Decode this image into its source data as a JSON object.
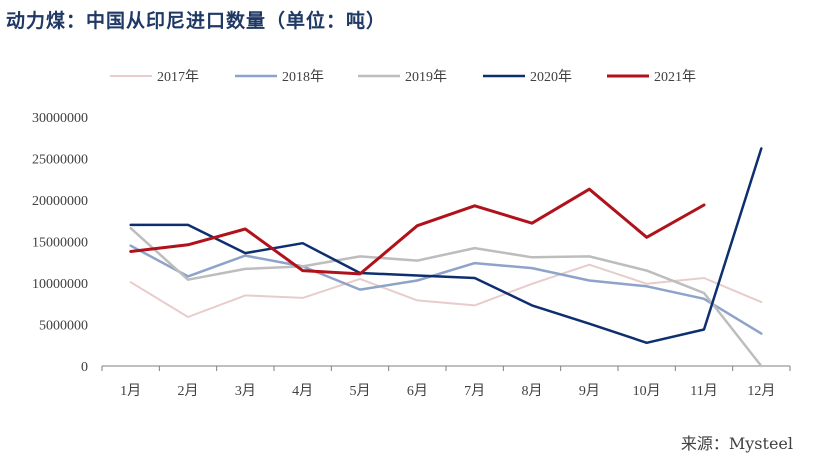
{
  "title": "动力煤：中国从印尼进口数量（单位：吨）",
  "source": "来源：Mysteel",
  "chart_data": {
    "type": "line",
    "categories": [
      "1月",
      "2月",
      "3月",
      "4月",
      "5月",
      "6月",
      "7月",
      "8月",
      "9月",
      "10月",
      "11月",
      "12月"
    ],
    "ylim": [
      0,
      30000000
    ],
    "yticks": [
      "0",
      "5000000",
      "10000000",
      "15000000",
      "20000000",
      "25000000",
      "30000000"
    ],
    "grid": false,
    "legend_position": "top",
    "series": [
      {
        "name": "2017年",
        "color": "#e8cccc",
        "width": 2,
        "values": [
          10100000,
          5900000,
          8500000,
          8200000,
          10500000,
          7900000,
          7300000,
          9900000,
          12200000,
          9900000,
          10600000,
          7700000
        ]
      },
      {
        "name": "2018年",
        "color": "#8ea3c9",
        "width": 2.5,
        "values": [
          14500000,
          10800000,
          13300000,
          12000000,
          9200000,
          10300000,
          12400000,
          11800000,
          10300000,
          9600000,
          8100000,
          3900000
        ]
      },
      {
        "name": "2019年",
        "color": "#bdbdbd",
        "width": 2.5,
        "values": [
          16600000,
          10400000,
          11700000,
          12000000,
          13200000,
          12700000,
          14200000,
          13100000,
          13200000,
          11500000,
          8800000,
          0
        ]
      },
      {
        "name": "2020年",
        "color": "#0e2f6e",
        "width": 2.5,
        "values": [
          17000000,
          17000000,
          13600000,
          14800000,
          11200000,
          10900000,
          10600000,
          7300000,
          5100000,
          2800000,
          4400000,
          26200000
        ]
      },
      {
        "name": "2021年",
        "color": "#b0121b",
        "width": 3,
        "values": [
          13800000,
          14600000,
          16500000,
          11500000,
          11100000,
          16900000,
          19300000,
          17200000,
          21300000,
          15500000,
          19400000,
          null
        ]
      }
    ]
  }
}
